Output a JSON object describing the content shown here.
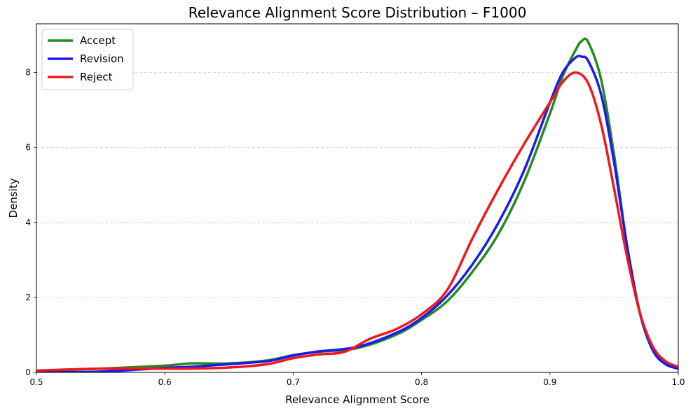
{
  "chart_data": {
    "type": "line",
    "title": "Relevance Alignment Score Distribution – F1000",
    "xlabel": "Relevance Alignment Score",
    "ylabel": "Density",
    "xlim": [
      0.5,
      1.0
    ],
    "ylim": [
      0,
      9.3
    ],
    "xticks": [
      0.5,
      0.6,
      0.7,
      0.8,
      0.9,
      1.0
    ],
    "xtick_labels": [
      "0.5",
      "0.6",
      "0.7",
      "0.8",
      "0.9",
      "1.0"
    ],
    "yticks": [
      0,
      2,
      4,
      6,
      8
    ],
    "ytick_labels": [
      "0",
      "2",
      "4",
      "6",
      "8"
    ],
    "grid": "y-axis dashed",
    "legend_position": "top-left",
    "series": [
      {
        "name": "Accept",
        "color": "#228b22",
        "x": [
          0.5,
          0.55,
          0.6,
          0.62,
          0.65,
          0.68,
          0.7,
          0.72,
          0.75,
          0.78,
          0.8,
          0.82,
          0.84,
          0.86,
          0.88,
          0.9,
          0.91,
          0.92,
          0.925,
          0.93,
          0.94,
          0.95,
          0.96,
          0.97,
          0.98,
          0.99,
          1.0
        ],
        "y": [
          0.03,
          0.1,
          0.18,
          0.24,
          0.24,
          0.32,
          0.46,
          0.55,
          0.65,
          1.0,
          1.4,
          1.9,
          2.7,
          3.7,
          5.1,
          6.9,
          7.9,
          8.6,
          8.85,
          8.8,
          7.8,
          5.8,
          3.4,
          1.6,
          0.6,
          0.25,
          0.12
        ]
      },
      {
        "name": "Revision",
        "color": "#1a1aee",
        "x": [
          0.5,
          0.55,
          0.6,
          0.62,
          0.65,
          0.68,
          0.7,
          0.72,
          0.75,
          0.78,
          0.8,
          0.82,
          0.84,
          0.86,
          0.88,
          0.9,
          0.91,
          0.92,
          0.925,
          0.93,
          0.94,
          0.95,
          0.96,
          0.97,
          0.98,
          0.99,
          1.0
        ],
        "y": [
          0.0,
          0.02,
          0.12,
          0.15,
          0.22,
          0.3,
          0.45,
          0.56,
          0.68,
          1.05,
          1.45,
          2.05,
          2.9,
          4.0,
          5.4,
          7.2,
          8.0,
          8.4,
          8.42,
          8.3,
          7.4,
          5.6,
          3.4,
          1.6,
          0.6,
          0.22,
          0.1
        ]
      },
      {
        "name": "Reject",
        "color": "#f01818",
        "x": [
          0.5,
          0.55,
          0.6,
          0.62,
          0.65,
          0.68,
          0.7,
          0.72,
          0.74,
          0.76,
          0.78,
          0.8,
          0.82,
          0.84,
          0.86,
          0.88,
          0.9,
          0.91,
          0.92,
          0.93,
          0.94,
          0.95,
          0.96,
          0.97,
          0.98,
          0.99,
          1.0
        ],
        "y": [
          0.05,
          0.1,
          0.1,
          0.1,
          0.13,
          0.22,
          0.38,
          0.48,
          0.55,
          0.9,
          1.15,
          1.55,
          2.2,
          3.6,
          4.9,
          6.1,
          7.2,
          7.75,
          8.0,
          7.7,
          6.6,
          4.9,
          3.1,
          1.6,
          0.7,
          0.3,
          0.15
        ]
      }
    ]
  }
}
